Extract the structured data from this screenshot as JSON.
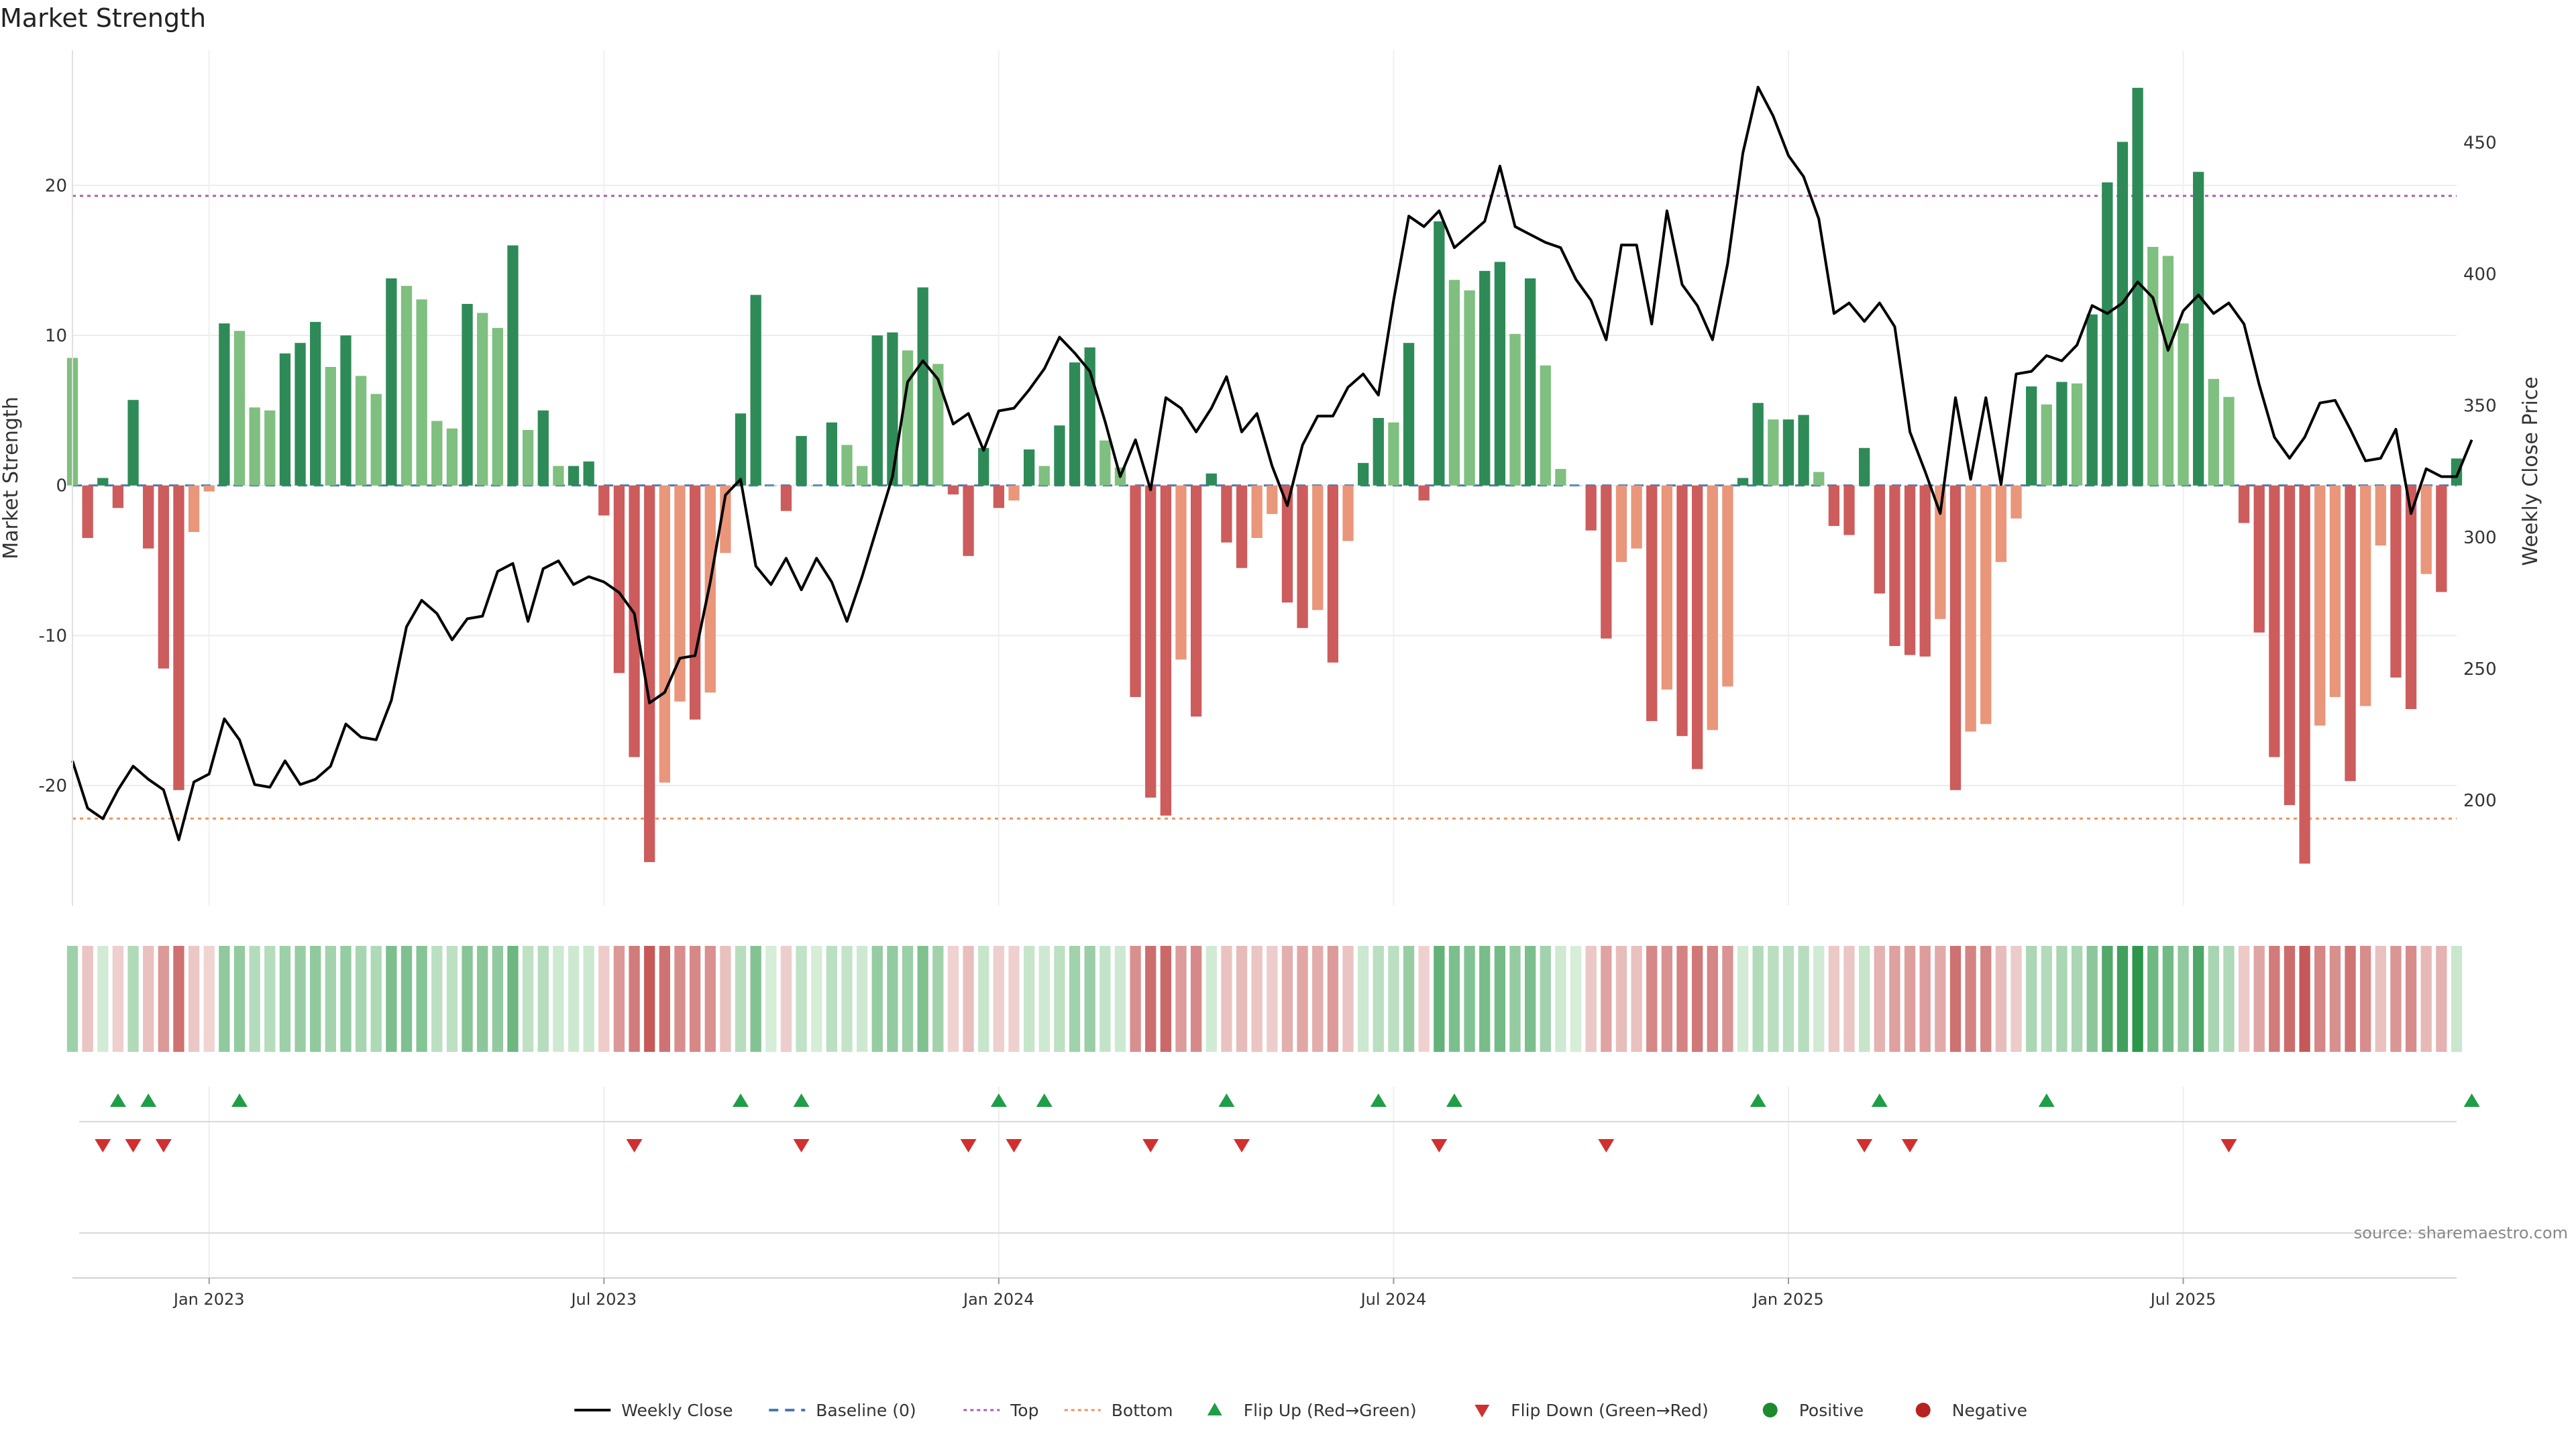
{
  "chart_data": {
    "type": "bar",
    "title": "Market Strength",
    "ylabel_left": "Market Strength",
    "ylabel_right": "Weekly Close Price",
    "ylim_left": [
      -28,
      29
    ],
    "ylim_right": [
      160,
      485
    ],
    "left_ticks": [
      20,
      10,
      0,
      -10,
      -20
    ],
    "right_ticks": [
      450,
      400,
      350,
      300,
      250,
      200
    ],
    "x_tick_labels": [
      "Jan 2023",
      "Jul 2023",
      "Jan 2024",
      "Jul 2024",
      "Jan 2025",
      "Jul 2025"
    ],
    "x_tick_weeks": [
      9,
      35,
      61,
      87,
      113,
      139
    ],
    "top_level": 19.3,
    "bottom_level": -22.2,
    "top_price": 434,
    "bottom_price": 200,
    "week_count": 158,
    "strength": [
      8.5,
      -3.5,
      0.5,
      -1.5,
      5.7,
      -4.2,
      -12.2,
      -20.3,
      -3.1,
      -0.4,
      10.8,
      10.3,
      5.2,
      5,
      8.8,
      9.5,
      10.9,
      7.9,
      10,
      7.3,
      6.1,
      13.8,
      13.3,
      12.4,
      4.3,
      3.8,
      12.1,
      11.5,
      10.5,
      16,
      3.7,
      5,
      1.3,
      1.3,
      1.6,
      -2,
      -12.5,
      -18.1,
      -25.1,
      -19.8,
      -14.4,
      -15.6,
      -13.8,
      -4.5,
      4.8,
      12.7,
      0,
      -1.7,
      3.3,
      0,
      4.2,
      2.7,
      1.3,
      10,
      10.2,
      9,
      13.2,
      8.1,
      -0.6,
      -4.7,
      2.5,
      -1.5,
      -1,
      2.4,
      1.3,
      4,
      8.2,
      9.2,
      3,
      1.2,
      -14.1,
      -20.8,
      -22,
      -11.6,
      -15.4,
      0.8,
      -3.8,
      -5.5,
      -3.5,
      -1.9,
      -7.8,
      -9.5,
      -8.3,
      -11.8,
      -3.7,
      1.5,
      4.5,
      4.2,
      9.5,
      -1,
      17.6,
      13.7,
      13,
      14.3,
      14.9,
      10.1,
      13.8,
      8,
      1.1,
      0,
      -3,
      -10.2,
      -5.1,
      -4.2,
      -15.7,
      -13.6,
      -16.7,
      -18.9,
      -16.3,
      -13.4,
      0.5,
      5.5,
      4.4,
      4.4,
      4.7,
      0.9,
      -2.7,
      -3.3,
      2.5,
      -7.2,
      -10.7,
      -11.3,
      -11.4,
      -8.9,
      -20.3,
      -16.4,
      -15.9,
      -5.1,
      -2.2,
      6.6,
      5.4,
      6.9,
      6.8,
      11.4,
      20.2,
      22.9,
      26.5,
      15.9,
      15.3,
      10.8,
      20.9,
      7.1,
      5.9,
      -2.5,
      -9.8,
      -18.1,
      -21.3,
      -25.2,
      -16,
      -14.1,
      -19.7,
      -14.7,
      -4,
      -12.8,
      -14.9,
      -5.9,
      -7.1,
      1.8
    ],
    "close": [
      215,
      197,
      193,
      204,
      213,
      208,
      204,
      185,
      207,
      210,
      231,
      223,
      206,
      205,
      215,
      206,
      208,
      213,
      229,
      224,
      223,
      238,
      266,
      276,
      271,
      261,
      269,
      270,
      287,
      290,
      268,
      288,
      291,
      282,
      285,
      283,
      279,
      271,
      237,
      241,
      254,
      255,
      283,
      316,
      322,
      289,
      282,
      292,
      280,
      292,
      283,
      268,
      285,
      304,
      323,
      359,
      367,
      360,
      343,
      347,
      333,
      348,
      349,
      356,
      364,
      376,
      370,
      363,
      344,
      323,
      337,
      318,
      353,
      349,
      340,
      349,
      361,
      340,
      347,
      327,
      312,
      335,
      346,
      346,
      357,
      362,
      354,
      390,
      422,
      418,
      424,
      410,
      415,
      420,
      441,
      418,
      415,
      412,
      410,
      398,
      390,
      375,
      411,
      411,
      381,
      424,
      396,
      388,
      375,
      404,
      446,
      471,
      460,
      445,
      437,
      421,
      385,
      389,
      382,
      389,
      380,
      340,
      325,
      309,
      353,
      322,
      353,
      320,
      362,
      363,
      369,
      367,
      373,
      388,
      385,
      389,
      397,
      391,
      371,
      386,
      392,
      385,
      389,
      381,
      358,
      338,
      330,
      338,
      351,
      352,
      341,
      329,
      330,
      341,
      309,
      326,
      323,
      323,
      337
    ],
    "flips_up": [
      3,
      5,
      11,
      44,
      48,
      61,
      64,
      76,
      86,
      91,
      111,
      119,
      130,
      158
    ],
    "flips_down": [
      2,
      4,
      6,
      37,
      48,
      59,
      62,
      71,
      77,
      90,
      101,
      118,
      121,
      142
    ],
    "legend": [
      {
        "label": "Weekly Close",
        "kind": "line",
        "color": "#000000"
      },
      {
        "label": "Baseline (0)",
        "kind": "dashed",
        "color": "#4a78b5"
      },
      {
        "label": "Top",
        "kind": "dotted",
        "color": "#a45fb0"
      },
      {
        "label": "Bottom",
        "kind": "dotted",
        "color": "#e8955e"
      },
      {
        "label": "Flip Up (Red→Green)",
        "kind": "triangle-up",
        "color": "#1f9e47"
      },
      {
        "label": "Flip Down (Green→Red)",
        "kind": "triangle-down",
        "color": "#d03030"
      },
      {
        "label": "Positive",
        "kind": "dot",
        "color": "#1e8a2e"
      },
      {
        "label": "Negative",
        "kind": "dot",
        "color": "#b72222"
      }
    ],
    "source": "source: sharemaestro.com"
  },
  "colors": {
    "pos_strong": "#2e8b57",
    "pos_weak": "#7fbf7f",
    "neg_strong": "#cd5c5c",
    "neg_weak": "#e9967a"
  }
}
